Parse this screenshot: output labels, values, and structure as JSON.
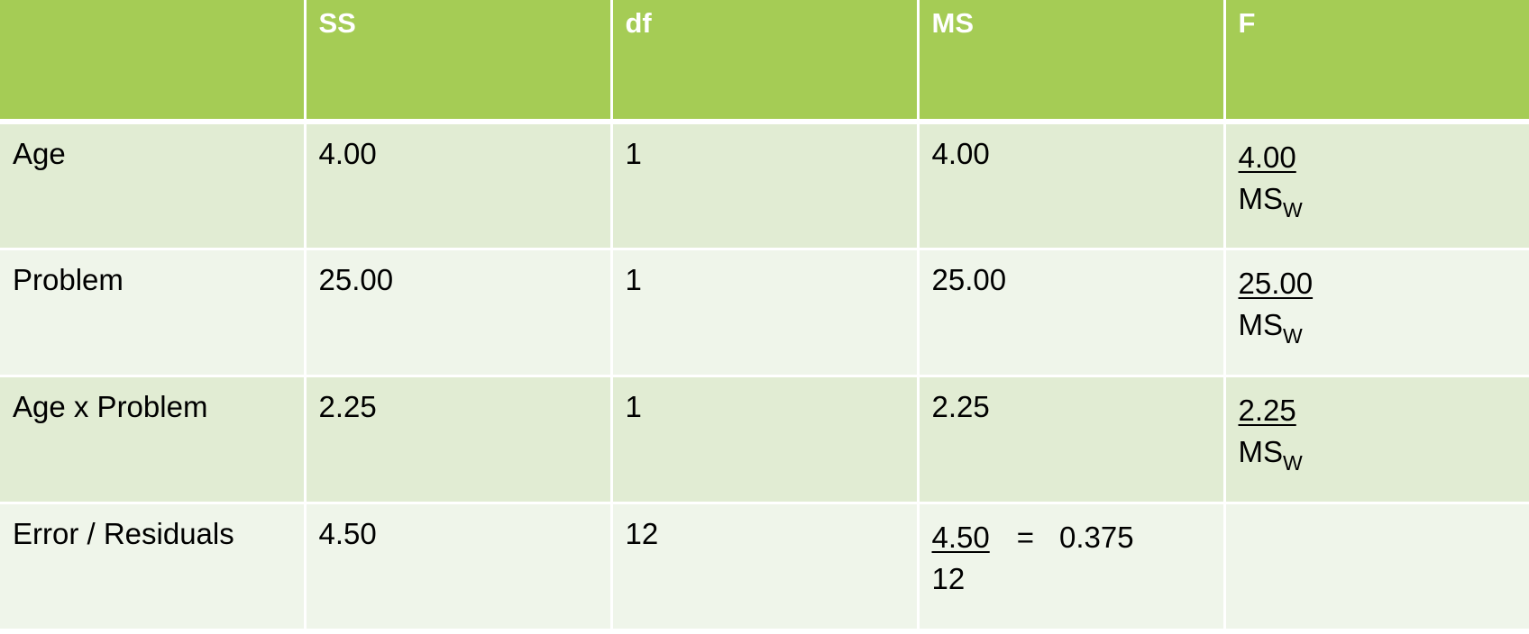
{
  "table": {
    "headers": [
      "",
      "SS",
      "df",
      "MS",
      "F"
    ],
    "rows": [
      {
        "source": "Age",
        "ss": "4.00",
        "df": "1",
        "ms": "4.00",
        "f_numerator": "4.00",
        "f_denominator": "MS",
        "f_denominator_sub": "W"
      },
      {
        "source": "Problem",
        "ss": "25.00",
        "df": "1",
        "ms": "25.00",
        "f_numerator": "25.00",
        "f_denominator": "MS",
        "f_denominator_sub": "W"
      },
      {
        "source": "Age x Problem",
        "ss": "2.25",
        "df": "1",
        "ms": "2.25",
        "f_numerator": "2.25",
        "f_denominator": "MS",
        "f_denominator_sub": "W"
      },
      {
        "source": "Error / Residuals",
        "ss": "4.50",
        "df": "12",
        "ms_numerator": "4.50",
        "ms_equals": "=",
        "ms_result": "0.375",
        "ms_denominator": "12",
        "f": ""
      }
    ]
  },
  "colors": {
    "header_bg": "#a5cc55",
    "header_text": "#ffffff",
    "row_dark": "#e1ecd3",
    "row_light": "#eff5ea"
  }
}
